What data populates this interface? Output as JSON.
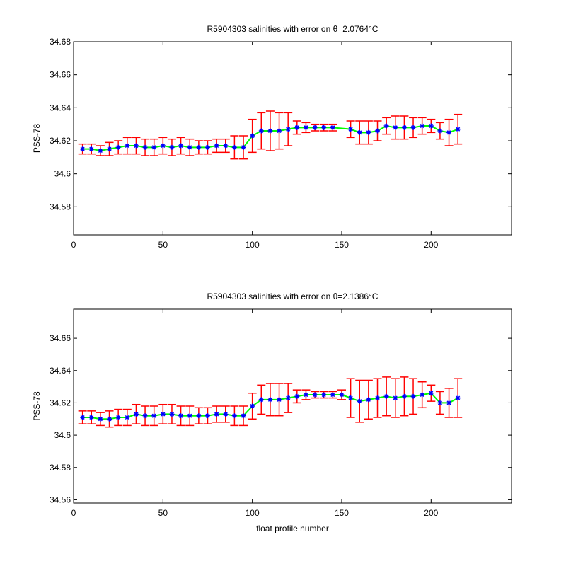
{
  "chart_data": [
    {
      "type": "scatter",
      "title": "R5904303 salinities with error on θ=2.0764°C",
      "xlabel": "",
      "ylabel": "PSS-78",
      "xlim": [
        0,
        245
      ],
      "ylim": [
        34.563,
        34.68
      ],
      "xticks": [
        0,
        50,
        100,
        150,
        200
      ],
      "yticks": [
        34.58,
        34.6,
        34.62,
        34.64,
        34.66,
        34.68
      ],
      "ytick_labels": [
        "34.58",
        "34.6",
        "34.62",
        "34.64",
        "34.66",
        "34.68"
      ],
      "colors": {
        "errorbar": "#ff0000",
        "line": "#00ff00",
        "marker": "#0000ff"
      },
      "series": [
        {
          "x": [
            5,
            10,
            15,
            20,
            25,
            30,
            35,
            40,
            45,
            50,
            55,
            60,
            65,
            70,
            75,
            80,
            85,
            90,
            95,
            100,
            105,
            110,
            115,
            120,
            125,
            130,
            135,
            140,
            145,
            155,
            160,
            165,
            170,
            175,
            180,
            185,
            190,
            195,
            200,
            205,
            210,
            215
          ],
          "y": [
            34.615,
            34.615,
            34.614,
            34.615,
            34.616,
            34.617,
            34.617,
            34.616,
            34.616,
            34.617,
            34.616,
            34.617,
            34.616,
            34.616,
            34.616,
            34.617,
            34.617,
            34.616,
            34.616,
            34.623,
            34.626,
            34.626,
            34.626,
            34.627,
            34.628,
            34.628,
            34.628,
            34.628,
            34.628,
            34.627,
            34.625,
            34.625,
            34.626,
            34.629,
            34.628,
            34.628,
            34.628,
            34.629,
            34.629,
            34.626,
            34.625,
            34.627
          ],
          "err": [
            0.003,
            0.003,
            0.003,
            0.004,
            0.004,
            0.005,
            0.005,
            0.005,
            0.005,
            0.005,
            0.005,
            0.005,
            0.005,
            0.004,
            0.004,
            0.004,
            0.004,
            0.007,
            0.007,
            0.01,
            0.011,
            0.012,
            0.011,
            0.01,
            0.004,
            0.003,
            0.002,
            0.002,
            0.002,
            0.005,
            0.007,
            0.007,
            0.006,
            0.005,
            0.007,
            0.007,
            0.006,
            0.005,
            0.004,
            0.005,
            0.008,
            0.009
          ]
        }
      ]
    },
    {
      "type": "scatter",
      "title": "R5904303 salinities with error on θ=2.1386°C",
      "xlabel": "float profile number",
      "ylabel": "PSS-78",
      "xlim": [
        0,
        245
      ],
      "ylim": [
        34.558,
        34.678
      ],
      "xticks": [
        0,
        50,
        100,
        150,
        200
      ],
      "yticks": [
        34.56,
        34.58,
        34.6,
        34.62,
        34.64,
        34.66
      ],
      "ytick_labels": [
        "34.56",
        "34.58",
        "34.6",
        "34.62",
        "34.64",
        "34.66"
      ],
      "colors": {
        "errorbar": "#ff0000",
        "line": "#00ff00",
        "marker": "#0000ff"
      },
      "series": [
        {
          "x": [
            5,
            10,
            15,
            20,
            25,
            30,
            35,
            40,
            45,
            50,
            55,
            60,
            65,
            70,
            75,
            80,
            85,
            90,
            95,
            100,
            105,
            110,
            115,
            120,
            125,
            130,
            135,
            140,
            145,
            150,
            155,
            160,
            165,
            170,
            175,
            180,
            185,
            190,
            195,
            200,
            205,
            210,
            215
          ],
          "y": [
            34.611,
            34.611,
            34.61,
            34.61,
            34.611,
            34.611,
            34.613,
            34.612,
            34.612,
            34.613,
            34.613,
            34.612,
            34.612,
            34.612,
            34.612,
            34.613,
            34.613,
            34.612,
            34.612,
            34.618,
            34.622,
            34.622,
            34.622,
            34.623,
            34.624,
            34.625,
            34.625,
            34.625,
            34.625,
            34.625,
            34.623,
            34.621,
            34.622,
            34.623,
            34.624,
            34.623,
            34.624,
            34.624,
            34.625,
            34.626,
            34.62,
            34.62,
            34.623
          ],
          "err": [
            0.004,
            0.004,
            0.004,
            0.005,
            0.005,
            0.005,
            0.006,
            0.006,
            0.006,
            0.006,
            0.006,
            0.006,
            0.006,
            0.005,
            0.005,
            0.005,
            0.005,
            0.006,
            0.006,
            0.008,
            0.009,
            0.01,
            0.01,
            0.009,
            0.004,
            0.003,
            0.002,
            0.002,
            0.002,
            0.003,
            0.012,
            0.013,
            0.012,
            0.012,
            0.012,
            0.012,
            0.012,
            0.011,
            0.008,
            0.005,
            0.007,
            0.009,
            0.012
          ]
        }
      ]
    }
  ]
}
